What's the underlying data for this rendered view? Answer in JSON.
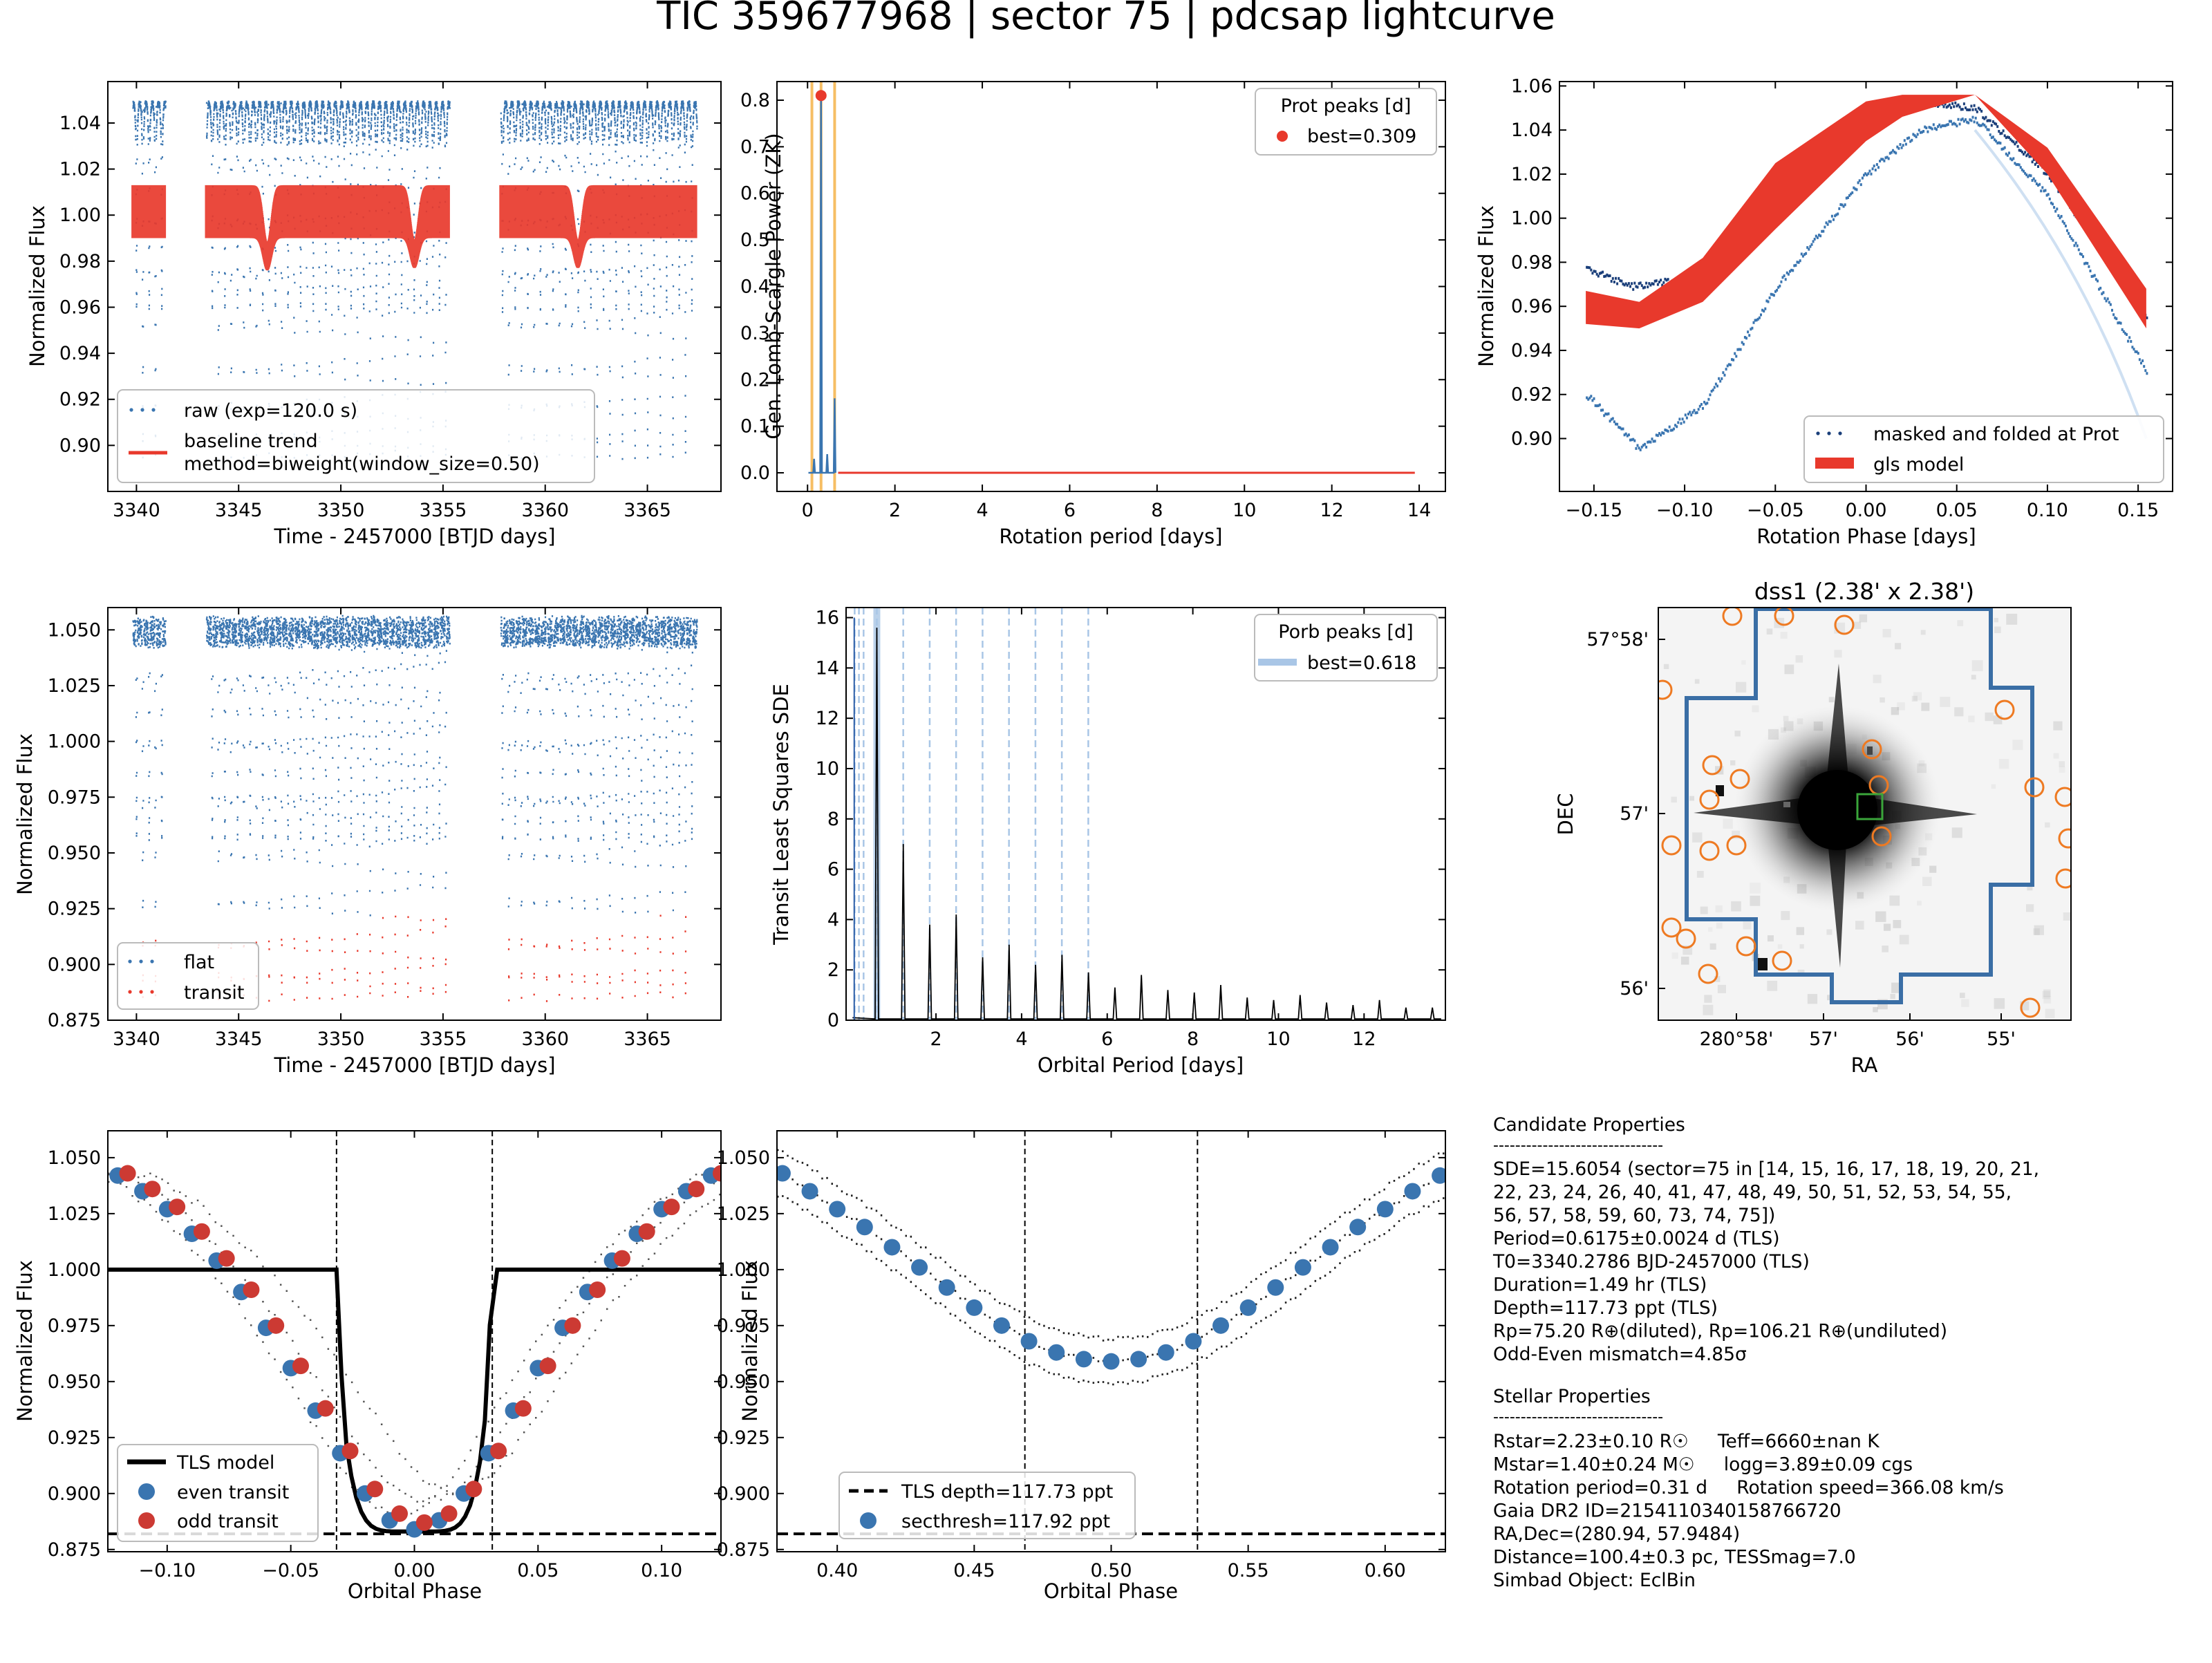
{
  "figure": {
    "title": "TIC 359677968 | sector 75 | pdcsap lightcurve"
  },
  "chart_data": [
    {
      "id": "raw-lightcurve",
      "type": "scatter",
      "xlabel": "Time - 2457000 [BTJD days]",
      "ylabel": "Normalized Flux",
      "xlim": [
        3338.6,
        3368.6
      ],
      "ylim": [
        0.88,
        1.058
      ],
      "xticks": [
        3340,
        3345,
        3350,
        3355,
        3360,
        3365
      ],
      "yticks": [
        0.9,
        0.92,
        0.94,
        0.96,
        0.98,
        1.0,
        1.02,
        1.04
      ],
      "ytick_labels": [
        "0.90",
        "0.92",
        "0.94",
        "0.96",
        "0.98",
        "1.00",
        "1.02",
        "1.04"
      ],
      "segments": [
        [
          3339.8,
          3341.4
        ],
        [
          3343.4,
          3355.3
        ],
        [
          3357.8,
          3367.4
        ]
      ],
      "eclipse_period": 0.6175,
      "eclipse_t0": 3340.2786,
      "series": [
        {
          "name": "raw (exp=120.0 s)",
          "color": "#3a75b0",
          "flux_max": 1.048,
          "flux_min_primary": 0.895,
          "flux_min_secondary": 0.958
        },
        {
          "name": "baseline trend\nmethod=biweight(window_size=0.50)",
          "color": "#e8392c",
          "low": 0.99,
          "high": 1.013,
          "dips": [
            [
              3346.4,
              0.976
            ],
            [
              3353.6,
              0.977
            ],
            [
              3361.6,
              0.977
            ]
          ]
        }
      ],
      "legend": "lower-left"
    },
    {
      "id": "gls-periodogram",
      "type": "line",
      "xlabel": "Rotation period [days]",
      "ylabel": "Gen. Lomb-Scargle Power (ZK)",
      "xlim": [
        -0.7,
        14.6
      ],
      "ylim": [
        -0.04,
        0.84
      ],
      "xticks": [
        0,
        2,
        4,
        6,
        8,
        10,
        12,
        14
      ],
      "yticks": [
        0.0,
        0.1,
        0.2,
        0.3,
        0.4,
        0.5,
        0.6,
        0.7,
        0.8
      ],
      "ytick_labels": [
        "0.0",
        "0.1",
        "0.2",
        "0.3",
        "0.4",
        "0.5",
        "0.6",
        "0.7",
        "0.8"
      ],
      "best_period": 0.309,
      "best_power": 0.81,
      "peaks": [
        [
          0.15,
          0.03
        ],
        [
          0.309,
          0.81
        ],
        [
          0.45,
          0.04
        ],
        [
          0.62,
          0.16
        ]
      ],
      "vlines": [
        0.1,
        0.309,
        0.62
      ],
      "line_end": 13.9,
      "legend_title": "Prot peaks [d]",
      "legend_label": "best=0.309",
      "legend": "upper-right"
    },
    {
      "id": "phase-folded-rotation",
      "type": "scatter",
      "xlabel": "Rotation Phase [days]",
      "ylabel": "Normalized Flux",
      "xlim": [
        -0.169,
        0.169
      ],
      "ylim": [
        0.876,
        1.062
      ],
      "xticks": [
        -0.15,
        -0.1,
        -0.05,
        0.0,
        0.05,
        0.1,
        0.15
      ],
      "xtick_labels": [
        "−0.15",
        "−0.10",
        "−0.05",
        "0.00",
        "0.05",
        "0.10",
        "0.15"
      ],
      "yticks": [
        0.9,
        0.92,
        0.94,
        0.96,
        0.98,
        1.0,
        1.02,
        1.04,
        1.06
      ],
      "ytick_labels": [
        "0.90",
        "0.92",
        "0.94",
        "0.96",
        "0.98",
        "1.00",
        "1.02",
        "1.04",
        "1.06"
      ],
      "phase_range": [
        -0.1545,
        0.1545
      ],
      "series": [
        {
          "name": "masked and folded at Prot",
          "color": "#2a5da8"
        },
        {
          "name": "gls model",
          "color": "#e8392c",
          "upper_edge": [
            [
              -0.1545,
              0.967
            ],
            [
              -0.125,
              0.962
            ],
            [
              -0.09,
              0.982
            ],
            [
              -0.05,
              1.025
            ],
            [
              0.0,
              1.053
            ],
            [
              0.02,
              1.056
            ],
            [
              0.06,
              1.056
            ],
            [
              0.1,
              1.032
            ],
            [
              0.1545,
              0.968
            ]
          ],
          "lower_edge": [
            [
              -0.1545,
              0.952
            ],
            [
              -0.125,
              0.95
            ],
            [
              -0.09,
              0.962
            ],
            [
              -0.05,
              0.995
            ],
            [
              0.0,
              1.035
            ],
            [
              0.02,
              1.046
            ],
            [
              0.06,
              1.056
            ],
            [
              0.1,
              1.02
            ],
            [
              0.1545,
              0.95
            ]
          ]
        }
      ],
      "legend": "lower-right"
    },
    {
      "id": "flattened-lightcurve",
      "type": "scatter",
      "xlabel": "Time - 2457000 [BTJD days]",
      "ylabel": "Normalized Flux",
      "xlim": [
        3338.6,
        3368.6
      ],
      "ylim": [
        0.875,
        1.06
      ],
      "xticks": [
        3340,
        3345,
        3350,
        3355,
        3360,
        3365
      ],
      "yticks": [
        0.875,
        0.9,
        0.925,
        0.95,
        0.975,
        1.0,
        1.025,
        1.05
      ],
      "ytick_labels": [
        "0.875",
        "0.900",
        "0.925",
        "0.950",
        "0.975",
        "1.000",
        "1.025",
        "1.050"
      ],
      "series": [
        {
          "name": "flat",
          "color": "#3a75b0",
          "flux_max": 1.055,
          "flux_min_primary": 0.885,
          "flux_min_secondary": 0.955
        },
        {
          "name": "transit",
          "color": "#e8392c",
          "transit_top": 0.922
        }
      ],
      "legend": "lower-left"
    },
    {
      "id": "tls-periodogram",
      "type": "line",
      "xlabel": "Orbital Period [days]",
      "ylabel": "Transit Least Squares SDE",
      "xlim": [
        -0.1,
        13.9
      ],
      "ylim": [
        0,
        16.4
      ],
      "xticks": [
        2,
        4,
        6,
        8,
        10,
        12
      ],
      "yticks": [
        0,
        2,
        4,
        6,
        8,
        10,
        12,
        14,
        16
      ],
      "ytick_labels": [
        "0",
        "2",
        "4",
        "6",
        "8",
        "10",
        "12",
        "14",
        "16"
      ],
      "best_period": 0.618,
      "best_sde": 15.6,
      "alias_heights": [
        15.6,
        7.0,
        3.8,
        4.2,
        2.5,
        3.0,
        2.2,
        2.6,
        1.9,
        1.3,
        1.8,
        1.2,
        1.1,
        1.4,
        0.9,
        0.8,
        1.0,
        0.7,
        0.6,
        0.8,
        0.5,
        0.5,
        0.6,
        0.4,
        0.4,
        0.45,
        0.35,
        0.3,
        0.35,
        0.25,
        0.25,
        0.3,
        0.2,
        0.2,
        0.25,
        0.2,
        0.2,
        0.25,
        0.2,
        0.15,
        0.2,
        0.15,
        0.15,
        0.1,
        0.1,
        0.1,
        0.1,
        0.1,
        0.1,
        0.1,
        0.1,
        0.1,
        0.1,
        0.1,
        0.1,
        0.1,
        0.1,
        0.1,
        0.1,
        0.1,
        0.1,
        0.1,
        0.1,
        0.1,
        0.1,
        0.1,
        0.1
      ],
      "harmonic_lines": [
        0.1,
        0.2,
        0.309,
        0.618,
        1.235,
        1.853,
        2.47,
        3.088,
        3.705,
        4.323,
        4.94,
        5.558
      ],
      "legend_title": "Porb peaks [d]",
      "legend_label": "best=0.618",
      "legend": "upper-right"
    },
    {
      "id": "dss-image",
      "type": "heatmap",
      "title": "dss1 (2.38' x 2.38')",
      "xlabel": "RA",
      "ylabel": "DEC",
      "xtick_labels": [
        "280°58'",
        "57'",
        "56'",
        "55'"
      ],
      "ytick_labels": [
        "57°58'",
        "57'",
        "56'"
      ]
    },
    {
      "id": "phase-folded-primary",
      "type": "scatter",
      "xlabel": "Orbital Phase",
      "ylabel": "Normalized Flux",
      "xlim": [
        -0.124,
        0.124
      ],
      "ylim": [
        0.874,
        1.062
      ],
      "xticks": [
        -0.1,
        -0.05,
        0.0,
        0.05,
        0.1
      ],
      "xtick_labels": [
        "−0.10",
        "−0.05",
        "0.00",
        "0.05",
        "0.10"
      ],
      "yticks": [
        0.875,
        0.9,
        0.925,
        0.95,
        0.975,
        1.0,
        1.025,
        1.05
      ],
      "ytick_labels": [
        "0.875",
        "0.900",
        "0.925",
        "0.950",
        "0.975",
        "1.000",
        "1.025",
        "1.050"
      ],
      "tls_model": {
        "depth_level": 0.883,
        "ingress": -0.0315,
        "egress": 0.0315
      },
      "depth_line": 0.882,
      "vlines": [
        -0.0315,
        0.0315
      ],
      "even_transit": [
        [
          -0.12,
          1.042
        ],
        [
          -0.11,
          1.035
        ],
        [
          -0.1,
          1.027
        ],
        [
          -0.09,
          1.016
        ],
        [
          -0.08,
          1.004
        ],
        [
          -0.07,
          0.99
        ],
        [
          -0.06,
          0.974
        ],
        [
          -0.05,
          0.956
        ],
        [
          -0.04,
          0.937
        ],
        [
          -0.03,
          0.918
        ],
        [
          -0.02,
          0.9
        ],
        [
          -0.01,
          0.888
        ],
        [
          0.0,
          0.884
        ],
        [
          0.01,
          0.888
        ],
        [
          0.02,
          0.9
        ],
        [
          0.03,
          0.918
        ],
        [
          0.04,
          0.937
        ],
        [
          0.05,
          0.956
        ],
        [
          0.06,
          0.974
        ],
        [
          0.07,
          0.99
        ],
        [
          0.08,
          1.004
        ],
        [
          0.09,
          1.016
        ],
        [
          0.1,
          1.027
        ],
        [
          0.11,
          1.035
        ],
        [
          0.12,
          1.042
        ]
      ],
      "odd_transit": [
        [
          -0.12,
          1.043
        ],
        [
          -0.11,
          1.036
        ],
        [
          -0.1,
          1.028
        ],
        [
          -0.09,
          1.017
        ],
        [
          -0.08,
          1.005
        ],
        [
          -0.07,
          0.991
        ],
        [
          -0.06,
          0.975
        ],
        [
          -0.05,
          0.957
        ],
        [
          -0.04,
          0.938
        ],
        [
          -0.03,
          0.919
        ],
        [
          -0.02,
          0.902
        ],
        [
          -0.01,
          0.891
        ],
        [
          0.0,
          0.887
        ],
        [
          0.01,
          0.891
        ],
        [
          0.02,
          0.902
        ],
        [
          0.03,
          0.919
        ],
        [
          0.04,
          0.938
        ],
        [
          0.05,
          0.957
        ],
        [
          0.06,
          0.975
        ],
        [
          0.07,
          0.991
        ],
        [
          0.08,
          1.005
        ],
        [
          0.09,
          1.017
        ],
        [
          0.1,
          1.028
        ],
        [
          0.11,
          1.036
        ],
        [
          0.12,
          1.043
        ]
      ],
      "series": [
        {
          "name": "TLS model",
          "color": "#000000"
        },
        {
          "name": "even transit",
          "color": "#3a75b0"
        },
        {
          "name": "odd transit",
          "color": "#cc3a33"
        }
      ],
      "legend": "lower-left"
    },
    {
      "id": "phase-folded-secondary",
      "type": "scatter",
      "xlabel": "Orbital Phase",
      "ylabel": "Normalized Flux",
      "xlim": [
        0.378,
        0.622
      ],
      "ylim": [
        0.874,
        1.062
      ],
      "xticks": [
        0.4,
        0.45,
        0.5,
        0.55,
        0.6
      ],
      "xtick_labels": [
        "0.40",
        "0.45",
        "0.50",
        "0.55",
        "0.60"
      ],
      "yticks": [
        0.875,
        0.9,
        0.925,
        0.95,
        0.975,
        1.0,
        1.025,
        1.05
      ],
      "ytick_labels": [
        "0.875",
        "0.900",
        "0.925",
        "0.950",
        "0.975",
        "1.000",
        "1.025",
        "1.050"
      ],
      "depth_line": 0.882,
      "vlines": [
        0.4685,
        0.5315
      ],
      "binned": [
        [
          0.38,
          1.043
        ],
        [
          0.39,
          1.035
        ],
        [
          0.4,
          1.027
        ],
        [
          0.41,
          1.019
        ],
        [
          0.42,
          1.01
        ],
        [
          0.43,
          1.001
        ],
        [
          0.44,
          0.992
        ],
        [
          0.45,
          0.983
        ],
        [
          0.46,
          0.975
        ],
        [
          0.47,
          0.968
        ],
        [
          0.48,
          0.963
        ],
        [
          0.49,
          0.96
        ],
        [
          0.5,
          0.959
        ],
        [
          0.51,
          0.96
        ],
        [
          0.52,
          0.963
        ],
        [
          0.53,
          0.968
        ],
        [
          0.54,
          0.975
        ],
        [
          0.55,
          0.983
        ],
        [
          0.56,
          0.992
        ],
        [
          0.57,
          1.001
        ],
        [
          0.58,
          1.01
        ],
        [
          0.59,
          1.019
        ],
        [
          0.6,
          1.027
        ],
        [
          0.61,
          1.035
        ],
        [
          0.62,
          1.042
        ]
      ],
      "series": [
        {
          "name": "TLS depth=117.73 ppt",
          "color": "#000000"
        },
        {
          "name": "secthresh=117.92 ppt",
          "color": "#3a75b0"
        }
      ],
      "legend": "lower-left"
    }
  ],
  "candidate": {
    "heading": "Candidate Properties",
    "rule": "-------------------------------",
    "lines": [
      "SDE=15.6054 (sector=75 in [14, 15, 16, 17, 18, 19, 20, 21,",
      "22, 23, 24, 26, 40, 41, 47, 48, 49, 50, 51, 52, 53, 54, 55,",
      "56, 57, 58, 59, 60, 73, 74, 75])",
      "Period=0.6175±0.0024 d (TLS)",
      "T0=3340.2786 BJD-2457000 (TLS)",
      "Duration=1.49 hr (TLS)",
      "Depth=117.73 ppt (TLS)",
      "Rp=75.20 R⊕(diluted), Rp=106.21 R⊕(undiluted)",
      "Odd-Even mismatch=4.85σ"
    ]
  },
  "stellar": {
    "heading": "Stellar Properties",
    "rule": "-------------------------------",
    "lines": [
      "Rstar=2.23±0.10 R☉     Teff=6660±nan K",
      "Mstar=1.40±0.24 M☉     logg=3.89±0.09 cgs",
      "Rotation period=0.31 d     Rotation speed=366.08 km/s",
      "Gaia DR2 ID=2154110340158766720",
      "RA,Dec=(280.94, 57.9484)",
      "Distance=100.4±0.3 pc, TESSmag=7.0",
      "Simbad Object: EclBin"
    ]
  }
}
